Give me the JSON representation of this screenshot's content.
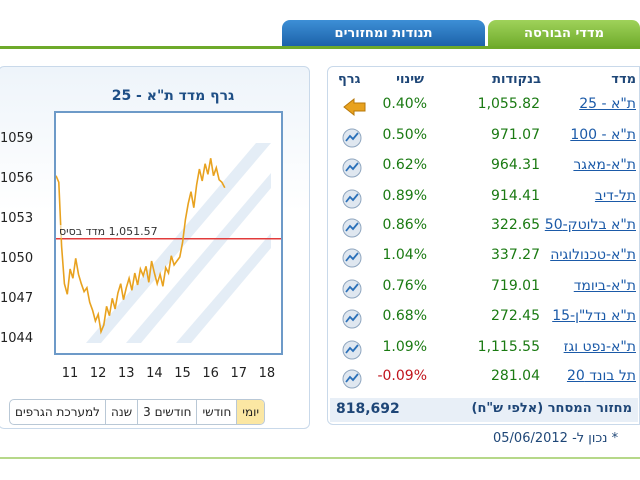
{
  "tabs": [
    {
      "label": "מדדי הבורסה",
      "active": true
    },
    {
      "label": "תנודות ומחזורים",
      "active": false
    }
  ],
  "chart": {
    "title": "גרף מדד ת\"א - 25",
    "base_label": "1,051.57 מדד בסיס",
    "y_ticks": [
      "1059",
      "1056",
      "1053",
      "1050",
      "1047",
      "1044"
    ],
    "x_ticks": [
      "11",
      "12",
      "13",
      "14",
      "15",
      "16",
      "17",
      "18"
    ]
  },
  "chart_data": {
    "type": "line",
    "title": "גרף מדד ת\"א - 25",
    "xlabel": "",
    "ylabel": "",
    "ylim": [
      1043,
      1061
    ],
    "xlim": [
      10.5,
      18.5
    ],
    "base_value": 1051.57,
    "series": [
      {
        "color": "#e8a21f",
        "x": [
          10.5,
          10.6,
          10.7,
          10.8,
          10.9,
          11.0,
          11.1,
          11.2,
          11.3,
          11.4,
          11.5,
          11.6,
          11.7,
          11.8,
          11.9,
          12.0,
          12.1,
          12.2,
          12.3,
          12.4,
          12.5,
          12.6,
          12.7,
          12.8,
          12.9,
          13.0,
          13.1,
          13.2,
          13.3,
          13.4,
          13.5,
          13.6,
          13.7,
          13.8,
          13.9,
          14.0,
          14.1,
          14.2,
          14.3,
          14.4,
          14.5,
          14.6,
          14.7,
          14.8,
          14.9,
          15.0,
          15.1,
          15.2,
          15.3,
          15.4,
          15.5,
          15.6,
          15.7,
          15.8,
          15.9,
          16.0,
          16.1,
          16.2,
          16.3,
          16.4,
          16.5
        ],
        "values": [
          1056.3,
          1055.8,
          1051.0,
          1048.2,
          1047.4,
          1049.3,
          1048.6,
          1050.1,
          1048.9,
          1048.2,
          1047.6,
          1047.9,
          1046.8,
          1046.2,
          1045.4,
          1045.9,
          1044.6,
          1045.1,
          1046.5,
          1045.8,
          1047.1,
          1046.3,
          1047.5,
          1048.2,
          1047.0,
          1047.9,
          1048.6,
          1047.7,
          1049.0,
          1048.1,
          1049.3,
          1048.8,
          1049.5,
          1048.3,
          1049.9,
          1049.0,
          1048.2,
          1048.9,
          1048.0,
          1049.4,
          1049.0,
          1050.3,
          1049.6,
          1049.9,
          1050.2,
          1051.3,
          1053.0,
          1054.2,
          1055.1,
          1053.9,
          1055.6,
          1056.8,
          1055.9,
          1057.2,
          1056.4,
          1057.6,
          1056.3,
          1056.9,
          1056.0,
          1055.8,
          1055.4
        ]
      }
    ],
    "grid": false
  },
  "periods": [
    "יומי",
    "חודשי",
    "3 חודשים",
    "שנה",
    "למערכת הגרפים"
  ],
  "active_period": "יומי",
  "table": {
    "headers": {
      "name": "מדד",
      "points": "בנקודות",
      "change": "שינוי",
      "graph": "גרף"
    },
    "rows": [
      {
        "name": "ת\"א - 25",
        "points": "1,055.82",
        "change": "0.40%",
        "negative": false,
        "icon": "arrow-left-icon"
      },
      {
        "name": "ת\"א - 100",
        "points": "971.07",
        "change": "0.50%",
        "negative": false,
        "icon": "chart-icon"
      },
      {
        "name": "ת\"א-מאגר",
        "points": "964.31",
        "change": "0.62%",
        "negative": false,
        "icon": "chart-icon"
      },
      {
        "name": "תל-דיב",
        "points": "914.41",
        "change": "0.89%",
        "negative": false,
        "icon": "chart-icon"
      },
      {
        "name": "ת\"א בלוטק-50",
        "points": "322.65",
        "change": "0.86%",
        "negative": false,
        "icon": "chart-icon"
      },
      {
        "name": "ת\"א-טכנולוגיה",
        "points": "337.27",
        "change": "1.04%",
        "negative": false,
        "icon": "chart-icon"
      },
      {
        "name": "ת\"א-ביומד",
        "points": "719.01",
        "change": "0.76%",
        "negative": false,
        "icon": "chart-icon"
      },
      {
        "name": "ת\"א נדל\"ן-15",
        "points": "272.45",
        "change": "0.68%",
        "negative": false,
        "icon": "chart-icon"
      },
      {
        "name": "ת\"א-נפט וגז",
        "points": "1,115.55",
        "change": "1.09%",
        "negative": false,
        "icon": "chart-icon"
      },
      {
        "name": "תל בונד 20",
        "points": "281.04",
        "change": "-0.09%",
        "negative": true,
        "icon": "chart-icon"
      }
    ],
    "turnover_label": "מחזור המסחר (אלפי ש\"ח)",
    "turnover_value": "818,692"
  },
  "updated_text": "* נכון ל- 05/06/2012",
  "colors": {
    "accent_green": "#6eaa2a",
    "accent_blue": "#1a5fa6",
    "positive": "#1a7a12",
    "negative": "#c0141c",
    "line": "#e8a21f",
    "base_line": "#e23b3b"
  }
}
